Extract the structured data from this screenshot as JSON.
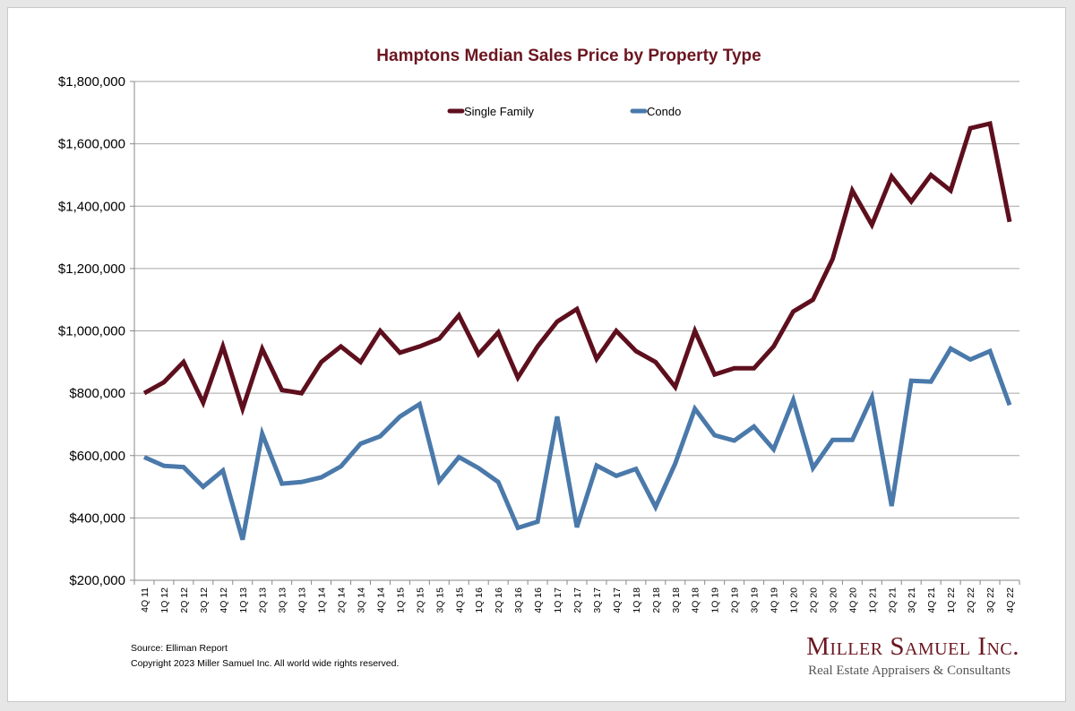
{
  "chart_data": {
    "type": "line",
    "title": "Hamptons Median Sales Price by Property Type",
    "xlabel": "",
    "ylabel": "",
    "ylim": [
      200000,
      1800000
    ],
    "y_ticks": [
      "$200,000",
      "$400,000",
      "$600,000",
      "$800,000",
      "$1,000,000",
      "$1,200,000",
      "$1,400,000",
      "$1,600,000",
      "$1,800,000"
    ],
    "grid": true,
    "legend_position": "top-center",
    "categories": [
      "4Q 11",
      "1Q 12",
      "2Q 12",
      "3Q 12",
      "4Q 12",
      "1Q 13",
      "2Q 13",
      "3Q 13",
      "4Q 13",
      "1Q 14",
      "2Q 14",
      "3Q 14",
      "4Q 14",
      "1Q 15",
      "2Q 15",
      "3Q 15",
      "4Q 15",
      "1Q 16",
      "2Q 16",
      "3Q 16",
      "4Q 16",
      "1Q 17",
      "2Q 17",
      "3Q 17",
      "4Q 17",
      "1Q 18",
      "2Q 18",
      "3Q 18",
      "4Q 18",
      "1Q 19",
      "2Q 19",
      "3Q 19",
      "4Q 19",
      "1Q 20",
      "2Q 20",
      "3Q 20",
      "4Q 20",
      "1Q 21",
      "2Q 21",
      "3Q 21",
      "4Q 21",
      "1Q 22",
      "2Q 22",
      "3Q 22",
      "4Q 22"
    ],
    "series": [
      {
        "name": "Single Family",
        "color": "#5e0f1d",
        "values": [
          800000,
          835000,
          900000,
          770000,
          950000,
          750000,
          942000,
          810000,
          800000,
          900000,
          950000,
          900000,
          1000000,
          930000,
          950000,
          975000,
          1050000,
          925000,
          995000,
          850000,
          950000,
          1030000,
          1070000,
          910000,
          1000000,
          935000,
          900000,
          820000,
          1000000,
          860000,
          880000,
          880000,
          950000,
          1062000,
          1100000,
          1230000,
          1450000,
          1340000,
          1495000,
          1415000,
          1500000,
          1450000,
          1650000,
          1665000,
          1350000
        ]
      },
      {
        "name": "Condo",
        "color": "#4a79aa",
        "values": [
          595000,
          567000,
          563000,
          500000,
          552000,
          330000,
          670000,
          510000,
          515000,
          530000,
          565000,
          638000,
          662000,
          725000,
          765000,
          518000,
          595000,
          560000,
          515000,
          368000,
          388000,
          725000,
          370000,
          568000,
          535000,
          557000,
          435000,
          575000,
          750000,
          665000,
          648000,
          693000,
          620000,
          778000,
          560000,
          650000,
          650000,
          787000,
          438000,
          840000,
          837000,
          943000,
          908000,
          935000,
          762000
        ]
      }
    ]
  },
  "footer": {
    "source": "Source: Elliman Report",
    "copyright": "Copyright 2023 Miller Samuel Inc.  All world wide rights reserved."
  },
  "brand": {
    "name": "Miller Samuel Inc.",
    "tagline": "Real Estate Appraisers & Consultants"
  },
  "colors": {
    "title": "#6b1620",
    "grid": "#a6a6a6"
  }
}
